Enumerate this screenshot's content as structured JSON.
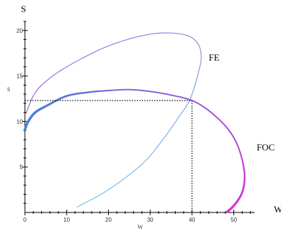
{
  "chart_data": {
    "type": "line",
    "title": "",
    "x_axis": {
      "name": "W",
      "range": [
        0,
        55
      ],
      "ticks": [
        0,
        10,
        20,
        30,
        40,
        50
      ]
    },
    "y_axis": {
      "name": "S",
      "range": [
        0,
        21
      ],
      "ticks": [
        5,
        10,
        15,
        20
      ]
    },
    "x_minor_step": 2,
    "y_minor_step": 1,
    "axis_titles": {
      "top_left": "S",
      "small_y": "S",
      "small_x": "W",
      "right": "W"
    },
    "grid": false,
    "legend": "none",
    "series": [
      {
        "name": "FE",
        "color_start": "#6ec0ea",
        "color_end": "#9a59d6",
        "points": [
          [
            12.5,
            0.6
          ],
          [
            20,
            2.5
          ],
          [
            28,
            5.3
          ],
          [
            33,
            8.0
          ],
          [
            37,
            10.6
          ],
          [
            39.5,
            12.4
          ],
          [
            41.5,
            15.3
          ],
          [
            42.2,
            17.3
          ],
          [
            41,
            18.8
          ],
          [
            37.5,
            19.6
          ],
          [
            30,
            19.6
          ],
          [
            20,
            18.3
          ],
          [
            10,
            16.0
          ],
          [
            4.5,
            14.2
          ],
          [
            2,
            12.8
          ],
          [
            0.3,
            10.9
          ]
        ]
      },
      {
        "name": "FOC",
        "color_start": "#3d87dc",
        "color_end": "#e02fd2",
        "points": [
          [
            0,
            9.1
          ],
          [
            0.8,
            10.0
          ],
          [
            2.5,
            11.0
          ],
          [
            5.5,
            11.8
          ],
          [
            10,
            12.8
          ],
          [
            15,
            13.2
          ],
          [
            20,
            13.4
          ],
          [
            25,
            13.5
          ],
          [
            30,
            13.3
          ],
          [
            35,
            12.9
          ],
          [
            40,
            12.3
          ],
          [
            44,
            11.2
          ],
          [
            48,
            9.5
          ],
          [
            50.5,
            7.8
          ],
          [
            52,
            5.8
          ],
          [
            52.6,
            3.9
          ],
          [
            52,
            2.2
          ],
          [
            50.3,
            0.9
          ],
          [
            48.5,
            0.1
          ]
        ]
      }
    ],
    "annotations": [
      {
        "text": "FE",
        "x": 44,
        "y": 16.7
      },
      {
        "text": "FOC",
        "x": 55.5,
        "y": 6.8
      }
    ],
    "guides": {
      "x": 40,
      "y": 12.3
    }
  }
}
